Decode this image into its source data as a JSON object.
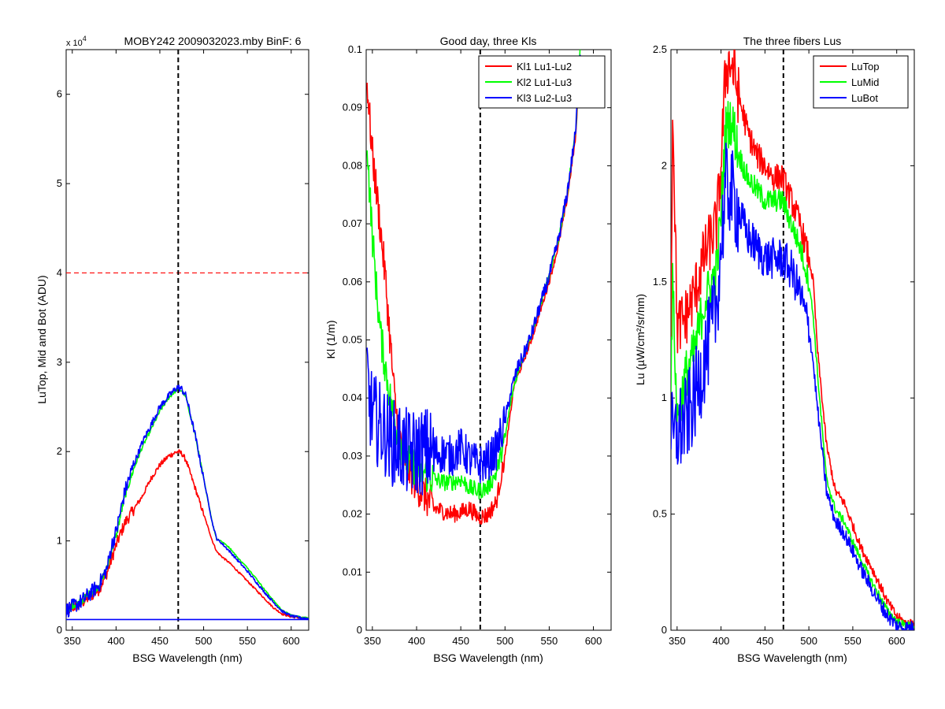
{
  "chart_data": [
    {
      "type": "line",
      "title": "MOBY242  2009032023.mby BinF: 6",
      "exponent_label": "x 10",
      "exponent_power": "4",
      "xlabel": "BSG Wavelength (nm)",
      "ylabel": "LuTop, Mid and Bot (ADU)",
      "xlim": [
        343,
        620
      ],
      "ylim": [
        0,
        6.5
      ],
      "xticks": [
        350,
        400,
        450,
        500,
        550,
        600
      ],
      "yticks": [
        0,
        1,
        2,
        3,
        4,
        5,
        6
      ],
      "xtick_labels": [
        "350",
        "400",
        "450",
        "500",
        "550",
        "600"
      ],
      "ytick_labels": [
        "0",
        "1",
        "2",
        "3",
        "4",
        "5",
        "6"
      ],
      "grid": false,
      "vline": {
        "x": 471,
        "color": "#000000",
        "style": "dashed"
      },
      "hline": {
        "y": 4,
        "color": "#ff0000",
        "style": "dashed"
      },
      "series": [
        {
          "color": "#ff0000",
          "noise": 0.03,
          "x": [
            343,
            360,
            380,
            390,
            395,
            400,
            410,
            420,
            430,
            440,
            450,
            460,
            470,
            475,
            480,
            490,
            500,
            510,
            515,
            520,
            530,
            540,
            550,
            560,
            570,
            580,
            590,
            600,
            610,
            620
          ],
          "y": [
            0.22,
            0.3,
            0.45,
            0.65,
            0.8,
            0.95,
            1.2,
            1.35,
            1.5,
            1.7,
            1.85,
            1.95,
            2.0,
            1.98,
            1.9,
            1.6,
            1.3,
            1.0,
            0.88,
            0.83,
            0.75,
            0.65,
            0.55,
            0.45,
            0.35,
            0.25,
            0.18,
            0.15,
            0.14,
            0.13
          ]
        },
        {
          "color": "#00ff00",
          "noise": 0.02,
          "x": [
            343,
            360,
            380,
            390,
            395,
            400,
            410,
            420,
            430,
            440,
            450,
            460,
            470,
            475,
            480,
            490,
            500,
            510,
            515,
            520,
            530,
            540,
            550,
            560,
            570,
            580,
            590,
            600,
            610,
            620
          ],
          "y": [
            0.22,
            0.32,
            0.5,
            0.7,
            0.9,
            1.05,
            1.5,
            1.8,
            2.05,
            2.25,
            2.45,
            2.6,
            2.7,
            2.68,
            2.6,
            2.2,
            1.7,
            1.2,
            1.02,
            1.0,
            0.92,
            0.8,
            0.7,
            0.58,
            0.45,
            0.33,
            0.22,
            0.17,
            0.15,
            0.14
          ]
        },
        {
          "color": "#0000ff",
          "noise": 0.04,
          "x": [
            343,
            360,
            380,
            390,
            395,
            400,
            410,
            420,
            430,
            440,
            450,
            460,
            470,
            475,
            480,
            490,
            500,
            510,
            515,
            520,
            530,
            540,
            550,
            560,
            570,
            580,
            590,
            600,
            610,
            620
          ],
          "y": [
            0.22,
            0.32,
            0.5,
            0.7,
            0.95,
            1.1,
            1.55,
            1.85,
            2.1,
            2.3,
            2.5,
            2.62,
            2.72,
            2.7,
            2.62,
            2.2,
            1.7,
            1.2,
            1.02,
            0.98,
            0.88,
            0.77,
            0.66,
            0.54,
            0.42,
            0.31,
            0.21,
            0.16,
            0.14,
            0.13
          ]
        },
        {
          "color": "#0000ff",
          "noise": 0,
          "x": [
            343,
            620
          ],
          "y": [
            0.12,
            0.12
          ]
        }
      ]
    },
    {
      "type": "line",
      "title": "Good day, three Kls",
      "xlabel": "BSG Wavelength (nm)",
      "ylabel": "Kl (1/m)",
      "xlim": [
        343,
        620
      ],
      "ylim": [
        0,
        0.1
      ],
      "xticks": [
        350,
        400,
        450,
        500,
        550,
        600
      ],
      "yticks": [
        0,
        0.01,
        0.02,
        0.03,
        0.04,
        0.05,
        0.06,
        0.07,
        0.08,
        0.09,
        0.1
      ],
      "xtick_labels": [
        "350",
        "400",
        "450",
        "500",
        "550",
        "600"
      ],
      "ytick_labels": [
        "0",
        "0.01",
        "0.02",
        "0.03",
        "0.04",
        "0.05",
        "0.06",
        "0.07",
        "0.08",
        "0.09",
        "0.1"
      ],
      "grid": false,
      "vline": {
        "x": 472,
        "color": "#000000",
        "style": "dashed"
      },
      "legend_placement": "top-right",
      "series": [
        {
          "name": "Kl1 Lu1-Lu2",
          "color": "#ff0000",
          "noise": 0.0015,
          "x": [
            344,
            346,
            350,
            355,
            360,
            365,
            370,
            375,
            380,
            385,
            390,
            400,
            410,
            420,
            430,
            440,
            450,
            460,
            470,
            480,
            490,
            500,
            505,
            510,
            515,
            520,
            530,
            540,
            550,
            560,
            570,
            580,
            585
          ],
          "y": [
            0.095,
            0.09,
            0.082,
            0.075,
            0.068,
            0.06,
            0.05,
            0.04,
            0.034,
            0.031,
            0.028,
            0.025,
            0.023,
            0.021,
            0.0205,
            0.02,
            0.0203,
            0.021,
            0.0195,
            0.0198,
            0.022,
            0.03,
            0.036,
            0.042,
            0.044,
            0.046,
            0.05,
            0.055,
            0.06,
            0.066,
            0.074,
            0.085,
            0.099
          ]
        },
        {
          "name": "Kl2 Lu1-Lu3",
          "color": "#00ff00",
          "noise": 0.0015,
          "x": [
            344,
            346,
            350,
            355,
            360,
            365,
            370,
            375,
            380,
            385,
            390,
            400,
            410,
            420,
            430,
            440,
            450,
            460,
            470,
            480,
            490,
            500,
            505,
            510,
            515,
            520,
            530,
            540,
            550,
            560,
            570,
            580,
            585
          ],
          "y": [
            0.085,
            0.078,
            0.068,
            0.058,
            0.05,
            0.045,
            0.04,
            0.036,
            0.033,
            0.031,
            0.029,
            0.028,
            0.027,
            0.026,
            0.0255,
            0.0255,
            0.026,
            0.0245,
            0.024,
            0.0245,
            0.027,
            0.033,
            0.038,
            0.042,
            0.0445,
            0.047,
            0.051,
            0.056,
            0.061,
            0.067,
            0.075,
            0.086,
            0.1
          ]
        },
        {
          "name": "Kl3 Lu2-Lu3",
          "color": "#0000ff",
          "noise": 0.0035,
          "x": [
            344,
            346,
            350,
            355,
            360,
            365,
            370,
            375,
            380,
            385,
            390,
            400,
            410,
            420,
            430,
            440,
            450,
            460,
            470,
            480,
            490,
            500,
            505,
            510,
            515,
            520,
            530,
            540,
            550,
            560,
            570,
            580,
            585
          ],
          "y": [
            0.045,
            0.04,
            0.037,
            0.036,
            0.035,
            0.034,
            0.033,
            0.032,
            0.032,
            0.031,
            0.0305,
            0.0305,
            0.031,
            0.0305,
            0.0305,
            0.03,
            0.0315,
            0.0295,
            0.0285,
            0.029,
            0.031,
            0.036,
            0.04,
            0.043,
            0.0455,
            0.047,
            0.051,
            0.056,
            0.061,
            0.067,
            0.075,
            0.086,
            0.1
          ]
        }
      ]
    },
    {
      "type": "line",
      "title": "The three fibers Lus",
      "xlabel": "BSG Wavelength (nm)",
      "ylabel": "Lu (µW/cm²/sr/nm)",
      "xlim": [
        343,
        620
      ],
      "ylim": [
        0,
        2.5
      ],
      "xticks": [
        350,
        400,
        450,
        500,
        550,
        600
      ],
      "yticks": [
        0,
        0.5,
        1,
        1.5,
        2,
        2.5
      ],
      "xtick_labels": [
        "350",
        "400",
        "450",
        "500",
        "550",
        "600"
      ],
      "ytick_labels": [
        "0",
        "0.5",
        "1",
        "1.5",
        "2",
        "2.5"
      ],
      "grid": false,
      "vline": {
        "x": 471,
        "color": "#000000",
        "style": "dashed"
      },
      "legend_placement": "top-right",
      "series": [
        {
          "name": "LuTop",
          "color": "#ff0000",
          "noise": 0.06,
          "x": [
            343,
            345,
            350,
            360,
            370,
            380,
            390,
            395,
            400,
            405,
            410,
            415,
            420,
            430,
            440,
            450,
            460,
            470,
            480,
            490,
            500,
            505,
            510,
            520,
            530,
            540,
            550,
            560,
            570,
            580,
            590,
            600,
            610,
            620
          ],
          "y": [
            1.2,
            2.3,
            1.3,
            1.35,
            1.45,
            1.6,
            1.7,
            1.75,
            2.0,
            2.4,
            2.45,
            2.4,
            2.3,
            2.15,
            2.05,
            2.0,
            1.95,
            1.95,
            1.85,
            1.75,
            1.6,
            1.5,
            1.2,
            0.8,
            0.6,
            0.55,
            0.45,
            0.35,
            0.28,
            0.2,
            0.12,
            0.06,
            0.03,
            0.03
          ]
        },
        {
          "name": "LuMid",
          "color": "#00ff00",
          "noise": 0.05,
          "x": [
            343,
            345,
            350,
            360,
            370,
            380,
            390,
            395,
            400,
            405,
            410,
            415,
            420,
            430,
            440,
            450,
            460,
            470,
            480,
            490,
            500,
            505,
            510,
            520,
            530,
            540,
            550,
            560,
            570,
            580,
            590,
            600,
            610,
            620
          ],
          "y": [
            1.1,
            1.5,
            0.9,
            1.1,
            1.2,
            1.4,
            1.5,
            1.55,
            1.8,
            2.15,
            2.2,
            2.15,
            2.05,
            1.95,
            1.9,
            1.85,
            1.85,
            1.85,
            1.75,
            1.65,
            1.5,
            1.35,
            1.1,
            0.65,
            0.52,
            0.47,
            0.38,
            0.3,
            0.22,
            0.15,
            0.08,
            0.04,
            0.02,
            0.02
          ]
        },
        {
          "name": "LuBot",
          "color": "#0000ff",
          "noise": 0.09,
          "x": [
            343,
            345,
            350,
            360,
            370,
            380,
            390,
            395,
            400,
            405,
            410,
            415,
            420,
            430,
            440,
            450,
            460,
            470,
            480,
            490,
            500,
            505,
            510,
            520,
            530,
            540,
            550,
            560,
            570,
            580,
            590,
            600,
            610,
            620
          ],
          "y": [
            0.9,
            0.8,
            0.85,
            0.9,
            1.0,
            1.15,
            1.3,
            1.4,
            1.65,
            1.9,
            1.9,
            1.85,
            1.8,
            1.7,
            1.65,
            1.6,
            1.6,
            1.6,
            1.55,
            1.45,
            1.3,
            1.15,
            0.95,
            0.6,
            0.47,
            0.42,
            0.34,
            0.26,
            0.19,
            0.12,
            0.06,
            0.02,
            0.01,
            0.01
          ]
        }
      ]
    }
  ]
}
